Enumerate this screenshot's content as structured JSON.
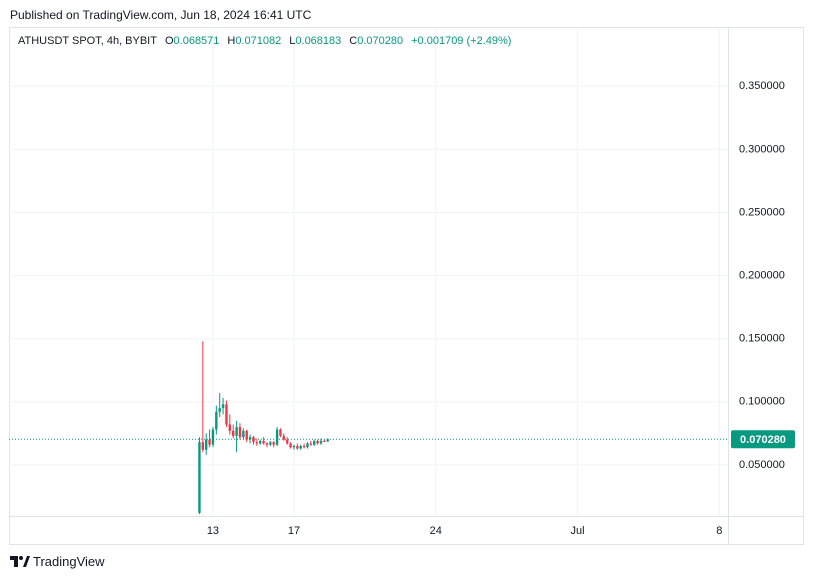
{
  "published": "Published on TradingView.com, Jun 18, 2024 16:41 UTC",
  "brand": "TradingView",
  "chart_data": {
    "type": "candlestick",
    "symbol": "ATHUSDT SPOT, 4h, BYBIT",
    "ohlc": [
      {
        "key": "O",
        "text": "0.068571"
      },
      {
        "key": "H",
        "text": "0.071082"
      },
      {
        "key": "L",
        "text": "0.068183"
      },
      {
        "key": "C",
        "text": "0.070280"
      }
    ],
    "change": "+0.001709 (+2.49%)",
    "up_color": "#089981",
    "down_color": "#f23645",
    "x": [
      12.333,
      12.5,
      12.667,
      12.833,
      13.0,
      13.167,
      13.333,
      13.5,
      13.667,
      13.833,
      14.0,
      14.167,
      14.333,
      14.5,
      14.667,
      14.833,
      15.0,
      15.167,
      15.333,
      15.5,
      15.667,
      15.833,
      16.0,
      16.167,
      16.333,
      16.5,
      16.667,
      16.833,
      17.0,
      17.167,
      17.333,
      17.5,
      17.667,
      17.833,
      18.0,
      18.167,
      18.333,
      18.5,
      18.667
    ],
    "open": [
      0.012,
      0.068,
      0.062,
      0.07,
      0.066,
      0.078,
      0.092,
      0.095,
      0.098,
      0.082,
      0.077,
      0.073,
      0.08,
      0.072,
      0.077,
      0.07,
      0.072,
      0.068,
      0.067,
      0.069,
      0.067,
      0.066,
      0.068,
      0.066,
      0.078,
      0.073,
      0.07,
      0.067,
      0.064,
      0.065,
      0.063,
      0.065,
      0.064,
      0.067,
      0.066,
      0.069,
      0.067,
      0.069,
      0.068571
    ],
    "high": [
      0.072,
      0.148,
      0.075,
      0.078,
      0.08,
      0.097,
      0.107,
      0.103,
      0.101,
      0.09,
      0.082,
      0.085,
      0.083,
      0.079,
      0.078,
      0.074,
      0.073,
      0.071,
      0.07,
      0.072,
      0.068,
      0.069,
      0.069,
      0.08,
      0.079,
      0.075,
      0.072,
      0.068,
      0.066,
      0.067,
      0.066,
      0.067,
      0.068,
      0.069,
      0.07,
      0.07,
      0.071,
      0.07,
      0.071082
    ],
    "low": [
      0.011,
      0.06,
      0.058,
      0.064,
      0.064,
      0.074,
      0.088,
      0.09,
      0.08,
      0.074,
      0.071,
      0.06,
      0.07,
      0.07,
      0.068,
      0.067,
      0.066,
      0.065,
      0.066,
      0.066,
      0.064,
      0.065,
      0.064,
      0.065,
      0.072,
      0.069,
      0.066,
      0.063,
      0.062,
      0.062,
      0.062,
      0.063,
      0.063,
      0.065,
      0.065,
      0.066,
      0.066,
      0.068,
      0.068183
    ],
    "close": [
      0.068,
      0.062,
      0.07,
      0.066,
      0.078,
      0.092,
      0.095,
      0.098,
      0.082,
      0.077,
      0.073,
      0.08,
      0.072,
      0.077,
      0.07,
      0.072,
      0.068,
      0.067,
      0.069,
      0.067,
      0.066,
      0.068,
      0.066,
      0.078,
      0.073,
      0.07,
      0.067,
      0.064,
      0.065,
      0.063,
      0.065,
      0.064,
      0.067,
      0.066,
      0.069,
      0.067,
      0.069,
      0.068571,
      0.07028
    ],
    "xlim": [
      2.93,
      38.43
    ],
    "xticks": [
      13,
      17,
      24,
      {
        "value": 31,
        "label": "Jul"
      },
      {
        "value": 38,
        "label": "8"
      }
    ],
    "ylim": [
      0.0095,
      0.397
    ],
    "yticks": [
      {
        "value": 0.05,
        "label": "0.050000"
      },
      {
        "value": 0.1,
        "label": "0.100000"
      },
      {
        "value": 0.15,
        "label": "0.150000"
      },
      {
        "value": 0.2,
        "label": "0.200000"
      },
      {
        "value": 0.25,
        "label": "0.250000"
      },
      {
        "value": 0.3,
        "label": "0.300000"
      },
      {
        "value": 0.35,
        "label": "0.350000"
      }
    ],
    "last_price": {
      "value": 0.07028,
      "label": "0.070280"
    },
    "grid": true
  }
}
